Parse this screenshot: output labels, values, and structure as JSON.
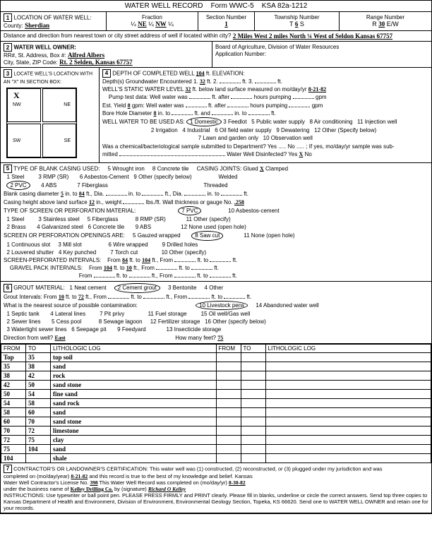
{
  "header": {
    "title": "WATER WELL RECORD",
    "form": "Form WWC-5",
    "ksa": "KSA 82a-1212"
  },
  "loc": {
    "county_lbl": "County:",
    "county": "Sherdian",
    "fraction_lbl": "Fraction",
    "f1": "¼",
    "f2": "NE",
    "f3": "¼",
    "f4": "NW",
    "f5": "¼",
    "section_lbl": "Section Number",
    "section": "1",
    "township_lbl": "Township Number",
    "township_t": "T",
    "township": "6",
    "township_s": "S",
    "range_lbl": "Range Number",
    "range_r": "R",
    "range": "30",
    "range_ew": "E/W",
    "dist_lbl": "Distance and direction from nearest town or city street address of well if located within city?",
    "dist": "2 Miles West  2 miles North ¼ West of Seldon Kansas 67757"
  },
  "owner": {
    "title": "WATER WELL OWNER:",
    "addr_lbl": "RR#, St. Address, Box #:",
    "addr": "Alfred Albers",
    "city_lbl": "City, State, ZIP Code:",
    "city": "Rt. 2   Selden, Kansas 67757",
    "board": "Board of Agriculture, Division of Water Resources",
    "app_lbl": "Application Number:"
  },
  "sec3": {
    "title": "LOCATE WELL'S LOCATION WITH AN \"X\" IN SECTION BOX:",
    "x_pos": "X"
  },
  "sec4": {
    "depth_lbl": "DEPTH OF COMPLETED WELL",
    "depth": "104",
    "elev_lbl": "ft. ELEVATION:",
    "gw_lbl": "Depth(s) Groundwater Encountered  1.",
    "gw1": "32",
    "gw2": "2.",
    "gw3": "ft.   3.",
    "gw4": "ft.",
    "static_lbl": "WELL'S STATIC WATER LEVEL",
    "static": "32",
    "static_after": "ft. below land surface measured on mo/day/yr",
    "static_date": "8-21-82",
    "pump_lbl": "Pump test data:  Well water was",
    "pump_after": "ft. after",
    "pump_hrs": "hours pumping",
    "pump_gpm": "gpm",
    "yield_lbl": "Est. Yield",
    "yield": "8",
    "yield_after": "gpm: Well water was",
    "yield_ft": "ft. after",
    "bore_lbl": "Bore Hole Diameter",
    "bore": "8",
    "bore_after": "in. to",
    "bore_ft": "ft. and",
    "bore_in": "in. to",
    "bore_ft2": "ft.",
    "use_lbl": "WELL WATER TO BE USED AS:",
    "use": [
      "1 Domestic",
      "2 Irrigation",
      "3 Feedlot",
      "4 Industrial",
      "5 Public water supply",
      "6 Oil field water supply",
      "7 Lawn and garden only",
      "8 Air conditioning",
      "9 Dewatering",
      "10 Observation well",
      "11 Injection well",
      "12 Other (Specify below)"
    ],
    "bact_lbl": "Was a chemical/bacteriological sample submitted to Department? Yes",
    "bact_no": "No",
    "bact_after": "; If yes, mo/day/yr sample was sub-",
    "mitted": "mitted",
    "disinfect_lbl": "Water Well Disinfected? Yes",
    "disinfect": "X",
    "disinfect_no": "No"
  },
  "sec5": {
    "title": "TYPE OF BLANK CASING USED:",
    "opts": [
      "1 Steel",
      "2 PVC",
      "3 RMP (SR)",
      "4 ABS",
      "5 Wrought iron",
      "6 Asbestos-Cement",
      "7 Fiberglass",
      "8 Concrete tile",
      "9 Other (specify below)"
    ],
    "joints_lbl": "CASING JOINTS: Glued",
    "joints_x": "X",
    "joints_after": "Clamped",
    "welded": "Welded",
    "threaded": "Threaded",
    "dia_lbl": "Blank casing diameter",
    "dia1": "5",
    "dia_to": "in. to",
    "dia2": "84",
    "dia_ft": "ft., Dia.",
    "dia_in": "in. to",
    "dia_ft2": "ft., Dia.",
    "dia_in2": "in. to",
    "dia_ft3": "ft.",
    "height_lbl": "Casing height above land surface",
    "height": "12",
    "weight_lbl": "in., weight",
    "weight_after": "lbs./ft. Wall thickness or gauge No.",
    "gauge": ".258",
    "screen_title": "TYPE OF SCREEN OR PERFORATION MATERIAL:",
    "screen_opts": [
      "1 Steel",
      "2 Brass",
      "3 Stainless steel",
      "4 Galvanized steel",
      "5 Fiberglass",
      "6 Concrete tile",
      "7 PVC",
      "8 RMP (SR)",
      "9 ABS",
      "10 Asbestos-cement",
      "11 Other (specify)",
      "12 None used (open hole)"
    ],
    "perf_title": "SCREEN OR PERFORATION OPENINGS ARE:",
    "perf_opts": [
      "1 Continuous slot",
      "2 Louvered shutter",
      "3 Mill slot",
      "4 Key punched",
      "5 Gauzed wrapped",
      "6 Wire wrapped",
      "7 Torch cut",
      "8 Saw cut",
      "9 Drilled holes",
      "10 Other (specify)",
      "11 None (open hole)"
    ],
    "sp_lbl": "SCREEN-PERFORATED INTERVALS:",
    "sp_from": "From",
    "sp1": "84",
    "sp_to": "ft. to",
    "sp2": "104",
    "sp_ft": "ft., From",
    "sp_to2": "ft. to",
    "sp_ft3": "ft.",
    "gp_lbl": "GRAVEL PACK INTERVALS:",
    "gp1": "104",
    "gp_to": "ft. to",
    "gp2": "10",
    "gp_from2": "From"
  },
  "sec6": {
    "title": "GROUT MATERIAL:",
    "opts": [
      "1 Neat cement",
      "2 Cement grout",
      "3 Bentonite",
      "4 Other"
    ],
    "int_lbl": "Grout Intervals:  From",
    "int1": "10",
    "int_to": "ft. to",
    "int2": "72",
    "int_after": "ft., From",
    "contam_lbl": "What is the nearest source of possible contamination:",
    "contam": [
      "1 Septic tank",
      "2 Sewer lines",
      "3 Watertight sewer lines",
      "4 Lateral lines",
      "5 Cess pool",
      "6 Seepage pit",
      "7 Pit privy",
      "8 Sewage lagoon",
      "9 Feedyard",
      "10 Livestock pens",
      "11 Fuel storage",
      "12 Fertilizer storage",
      "13 Insecticide storage",
      "14 Abandoned water well",
      "15 Oil well/Gas well",
      "16 Other (specify below)"
    ],
    "dir_lbl": "Direction from well?",
    "dir": "East",
    "feet_lbl": "How many feet?",
    "feet": "75"
  },
  "log": {
    "hdrs": [
      "FROM",
      "TO",
      "LITHOLOGIC LOG",
      "FROM",
      "TO",
      "LITHOLOGIC LOG"
    ],
    "rows": [
      [
        "Top",
        "35",
        "top soil",
        "",
        "",
        ""
      ],
      [
        "35",
        "38",
        "sand",
        "",
        "",
        ""
      ],
      [
        "38",
        "42",
        "rock",
        "",
        "",
        ""
      ],
      [
        "42",
        "50",
        "sand stone",
        "",
        "",
        ""
      ],
      [
        "50",
        "54",
        "fine sand",
        "",
        "",
        ""
      ],
      [
        "54",
        "58",
        "sand rock",
        "",
        "",
        ""
      ],
      [
        "58",
        "60",
        "sand",
        "",
        "",
        ""
      ],
      [
        "60",
        "70",
        "sand stone",
        "",
        "",
        ""
      ],
      [
        "70",
        "72",
        "limestone",
        "",
        "",
        ""
      ],
      [
        "72",
        "75",
        "clay",
        "",
        "",
        ""
      ],
      [
        "75",
        "104",
        "sand",
        "",
        "",
        ""
      ],
      [
        "104",
        "",
        "shale",
        "",
        "",
        ""
      ]
    ]
  },
  "sec7": {
    "cert": "CONTRACTOR'S OR LANDOWNER'S CERTIFICATION: This water well was (1) constructed, (2) reconstructed, or (3) plugged under my jurisdiction and was",
    "comp_lbl": "completed on (mo/day/year)",
    "comp": "8-21-82",
    "comp_after": "and this record is true to the best of my knowledge and belief. Kansas",
    "lic_lbl": "Water Well Contractor's License No.",
    "lic": "398",
    "lic_after": "This Water Well Record was completed on (mo/day/yr)",
    "lic_date": "8-30-82",
    "bus_lbl": "under the business name of",
    "bus": "Kelley Drilling Co.",
    "sig_lbl": "by (signature)",
    "instr": "INSTRUCTIONS: Use typewriter or ball point pen. PLEASE PRESS FIRMLY and PRINT clearly. Please fill in blanks, underline or circle the correct answers. Send top three copies to Kansas Department of Health and Environment, Division of Environment, Environmental Geology Section, Topeka, KS 66620. Send one to WATER WELL OWNER and retain one for your records."
  }
}
